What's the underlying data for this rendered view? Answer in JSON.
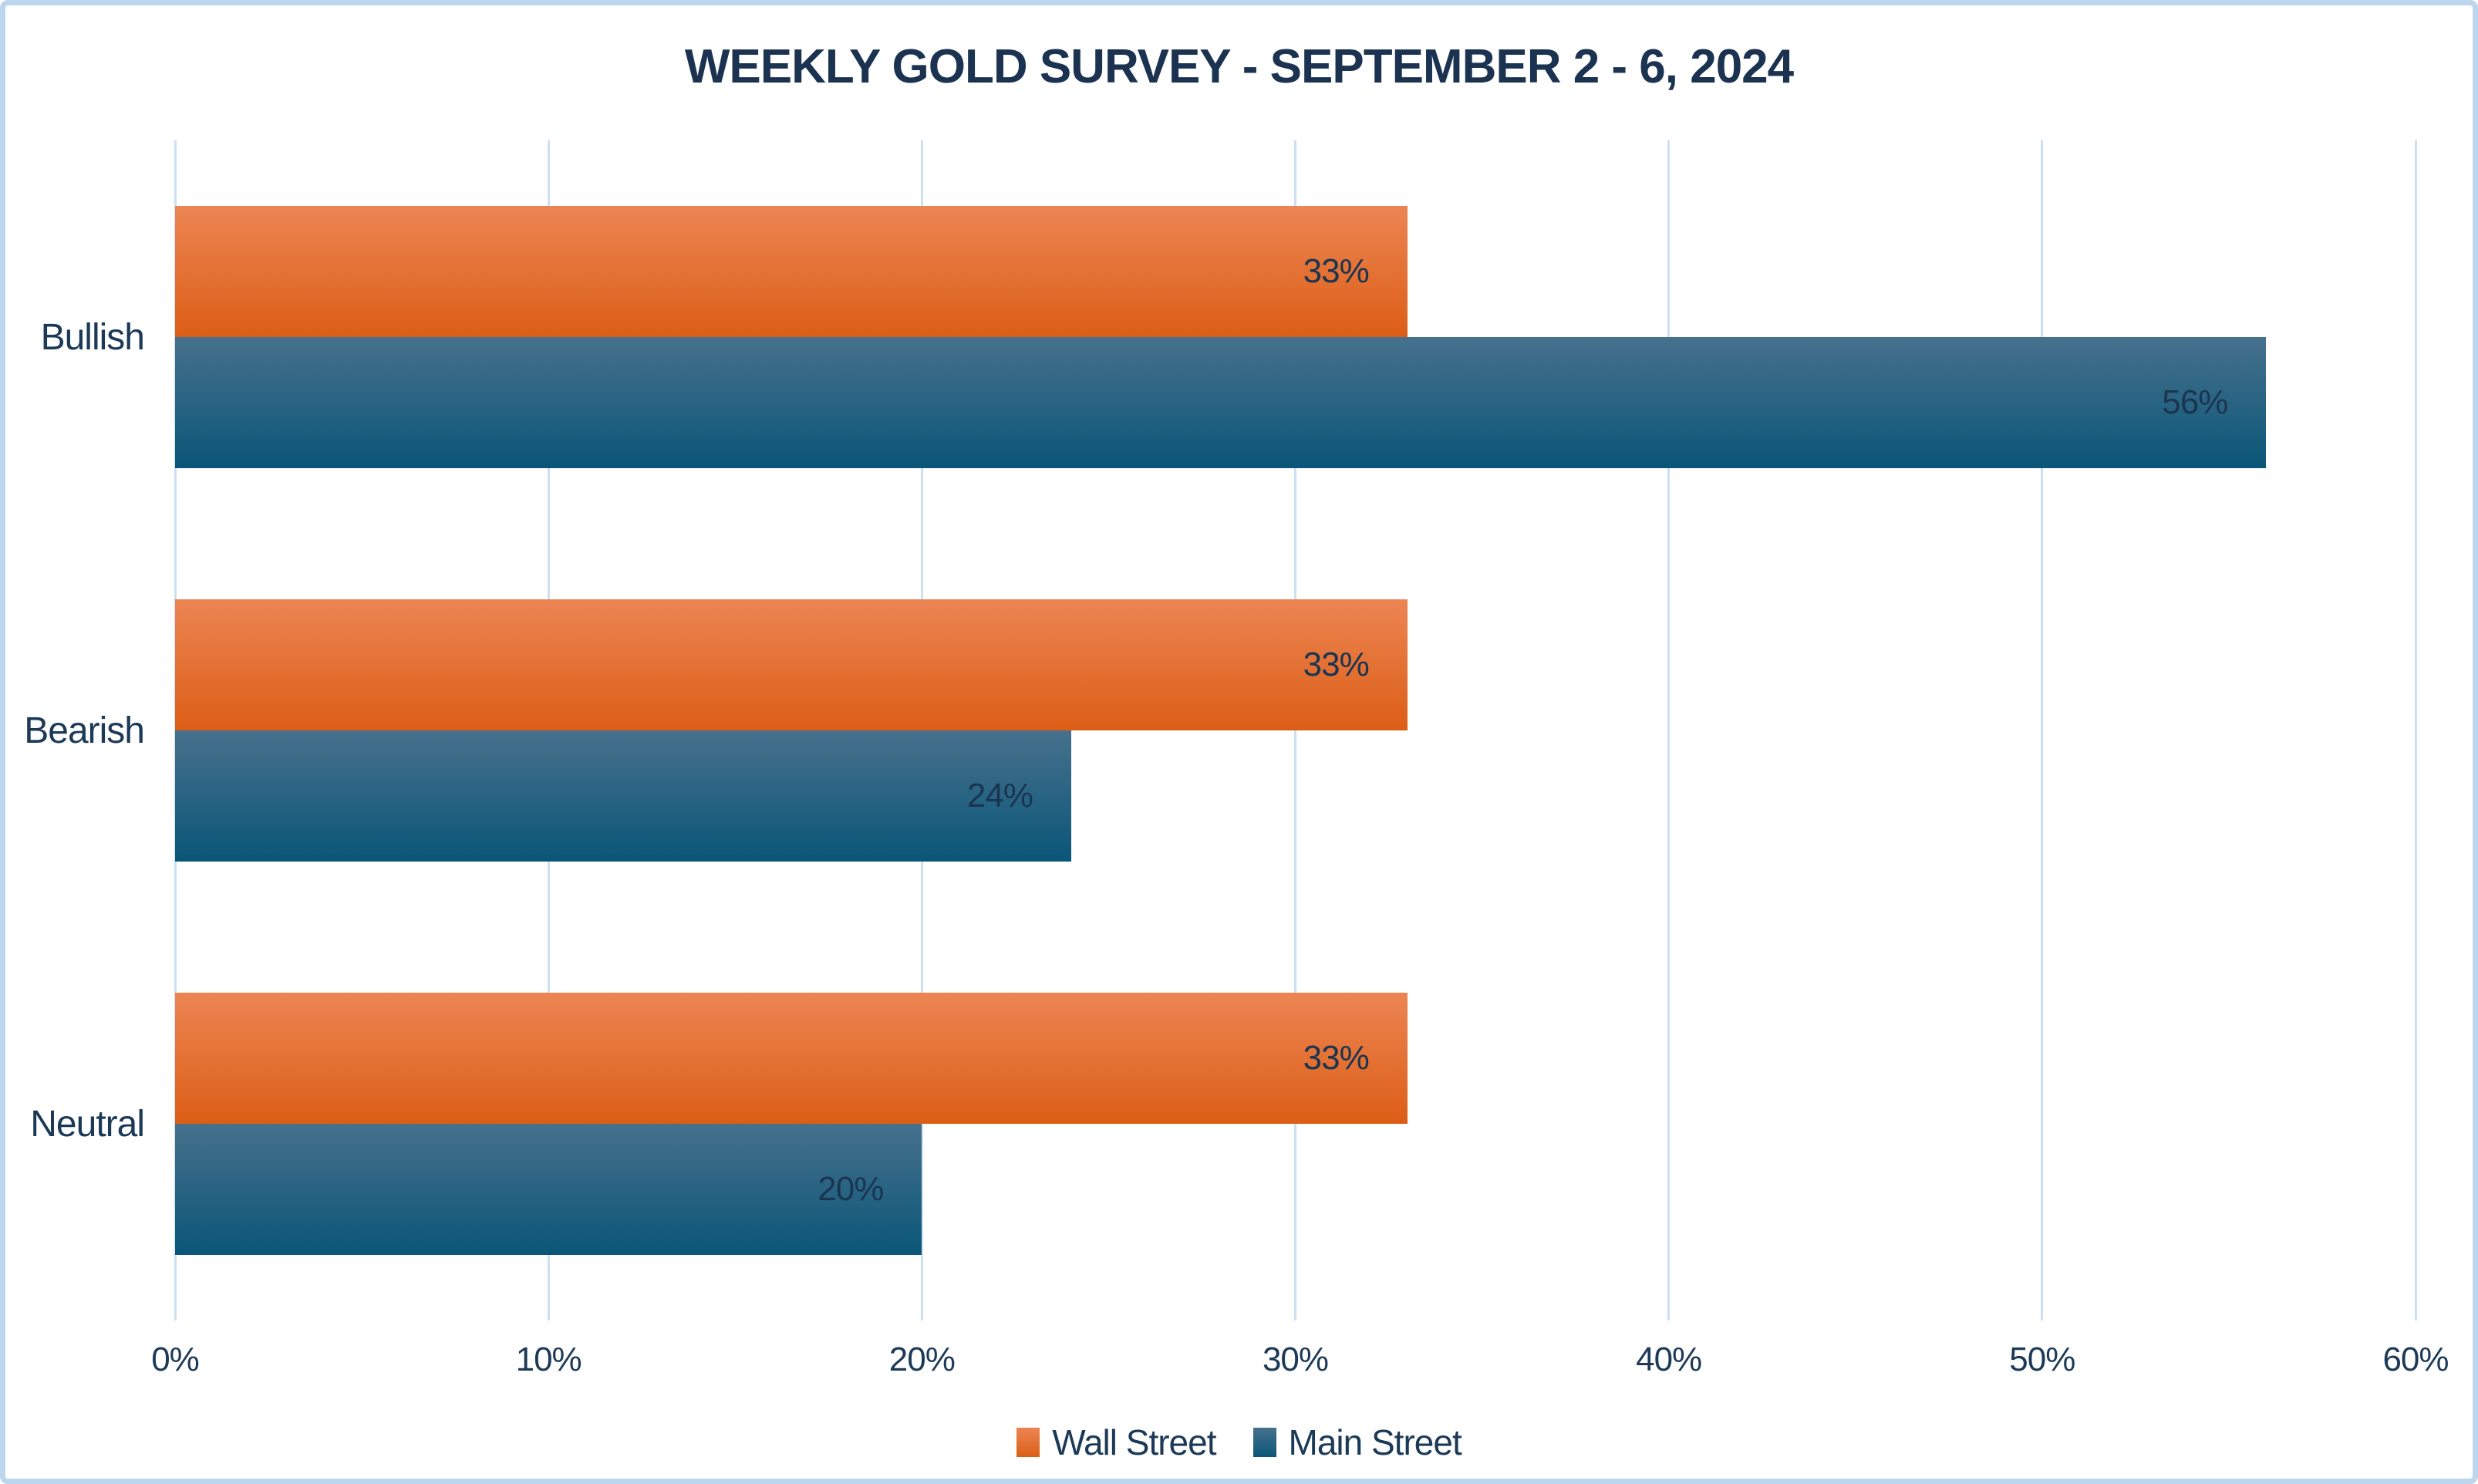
{
  "title": "WEEKLY GOLD SURVEY - SEPTEMBER 2 - 6, 2024",
  "colors": {
    "background": "#FFFFFF",
    "border": "#BCD6EE",
    "grid": "#CCE0F3",
    "title_text": "#1B3350",
    "axis_text": "#1C3A57",
    "data_label_text": "#1B3550"
  },
  "chart_data": {
    "type": "bar",
    "orientation": "horizontal",
    "title": "WEEKLY GOLD SURVEY - SEPTEMBER 2 - 6, 2024",
    "categories": [
      "Bullish",
      "Bearish",
      "Neutral"
    ],
    "series": [
      {
        "name": "Wall Street",
        "values": [
          33,
          33,
          33
        ],
        "labels": [
          "33%",
          "33%",
          "33%"
        ],
        "gradient_top": "#EC8553",
        "gradient_bottom": "#DC5E16"
      },
      {
        "name": "Main Street",
        "values": [
          56,
          24,
          20
        ],
        "labels": [
          "56%",
          "24%",
          "20%"
        ],
        "gradient_top": "#46718C",
        "gradient_bottom": "#0A5678"
      }
    ],
    "xlabel": "",
    "ylabel": "",
    "xlim": [
      0,
      60
    ],
    "x_ticks": [
      "0%",
      "10%",
      "20%",
      "30%",
      "40%",
      "50%",
      "60%"
    ],
    "grid": true,
    "data_labels_visible": true,
    "legend_position": "bottom"
  }
}
